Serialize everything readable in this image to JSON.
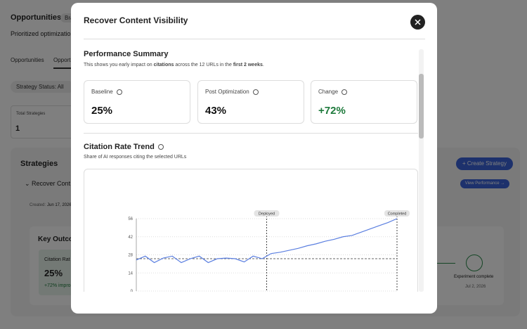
{
  "background": {
    "title": "Opportunities",
    "badge": "Bra",
    "subtitle": "Prioritized optimization",
    "tabs": [
      "Opportunities",
      "Opportu"
    ],
    "filter": "Strategy Status: All",
    "total_label": "Total Strategies",
    "total_value": "1",
    "section": "Strategies",
    "create_button": "+ Create Strategy",
    "strategy_name": "⌄  Recover Cont",
    "view_button": "View Performance →",
    "created_label": "Created:",
    "created_date": "Jun 17, 2026",
    "key_outcomes": "Key Outco",
    "metric_label": "Citation Rat",
    "metric_value": "25%",
    "metric_change": "+72% impro",
    "milestone": "Experiment complete",
    "milestone_date": "Jul 2, 2026"
  },
  "modal": {
    "title": "Recover Content Visibility",
    "summary": {
      "heading": "Performance Summary",
      "text": [
        "This shows you early impact on ",
        "citations",
        " across the 12 URLs in the ",
        "first 2 weeks",
        "."
      ],
      "cards": [
        {
          "label": "Baseline",
          "value": "25%"
        },
        {
          "label": "Post Optimization",
          "value": "43%"
        },
        {
          "label": "Change",
          "value": "+72%"
        }
      ]
    },
    "trend": {
      "heading": "Citation Rate Trend",
      "subtitle": "Share of AI responses citing the selected URLs"
    }
  },
  "chart_data": {
    "type": "line",
    "categories": [
      null,
      null,
      null,
      null,
      null,
      null,
      null,
      null,
      null,
      null,
      null,
      null,
      null,
      null,
      null,
      null,
      null,
      null,
      null,
      null,
      null,
      null,
      null,
      null,
      null,
      null,
      null,
      null,
      null,
      null
    ],
    "values": [
      24,
      27,
      22,
      25.5,
      27,
      22,
      25,
      27,
      22,
      25,
      25.5,
      25,
      22.5,
      27,
      25,
      29,
      30,
      31.5,
      33,
      35,
      36.5,
      38.5,
      40,
      42,
      43,
      45.5,
      48,
      50.5,
      53,
      56
    ],
    "color": "#5b7fe0",
    "ylim": [
      0,
      56
    ],
    "yticks": [
      0,
      14,
      28,
      42,
      56
    ],
    "grid": true,
    "baseline": 25,
    "annotations": [
      {
        "text": "Deployed",
        "x": 14.5
      },
      {
        "text": "Completed",
        "x": 29
      }
    ]
  }
}
